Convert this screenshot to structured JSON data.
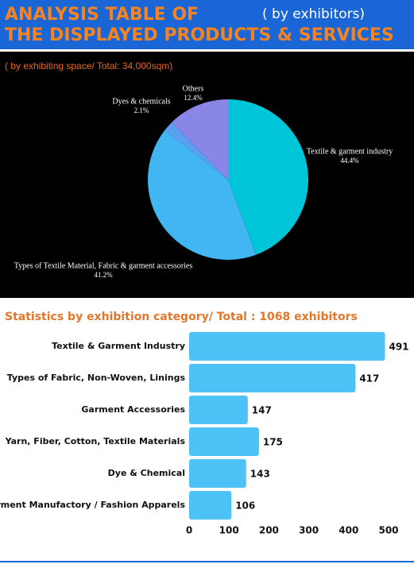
{
  "header": {
    "title_line1": "ANALYSIS TABLE OF",
    "title_line2": "THE DISPLAYED PRODUCTS & SERVICES",
    "note": "( by exhibitors)"
  },
  "chart_data": [
    {
      "type": "pie",
      "title": "( by exhibiting space/ Total: 34,000sqm)",
      "categories": [
        "Textile & garment industry",
        "Types of Textile Material, Fabric & garment accessories",
        "Dyes & chemicals",
        "Others"
      ],
      "values": [
        44.4,
        41.2,
        2.1,
        12.4
      ],
      "value_labels": [
        "44.4%",
        "41.2%",
        "2.1%",
        "12.4%"
      ],
      "colors": [
        "#00c4d8",
        "#42b6f3",
        "#5a9ff0",
        "#8a86e8"
      ]
    },
    {
      "type": "hbar",
      "title": "Statistics by exhibition category/ Total : 1068 exhibitors",
      "categories": [
        "Textile & Garment Industry",
        "Types of Fabric, Non-Woven, Linings",
        "Garment Accessories",
        "Yarn, Fiber, Cotton, Textile Materials",
        "Dye & Chemical",
        "Garment Manufactory / Fashion Apparels"
      ],
      "values": [
        491,
        417,
        147,
        175,
        143,
        106
      ],
      "color": "#4cc2f7",
      "xlim": [
        0,
        500
      ],
      "xticks": [
        0,
        100,
        200,
        300,
        400,
        500
      ],
      "grid": false
    }
  ]
}
